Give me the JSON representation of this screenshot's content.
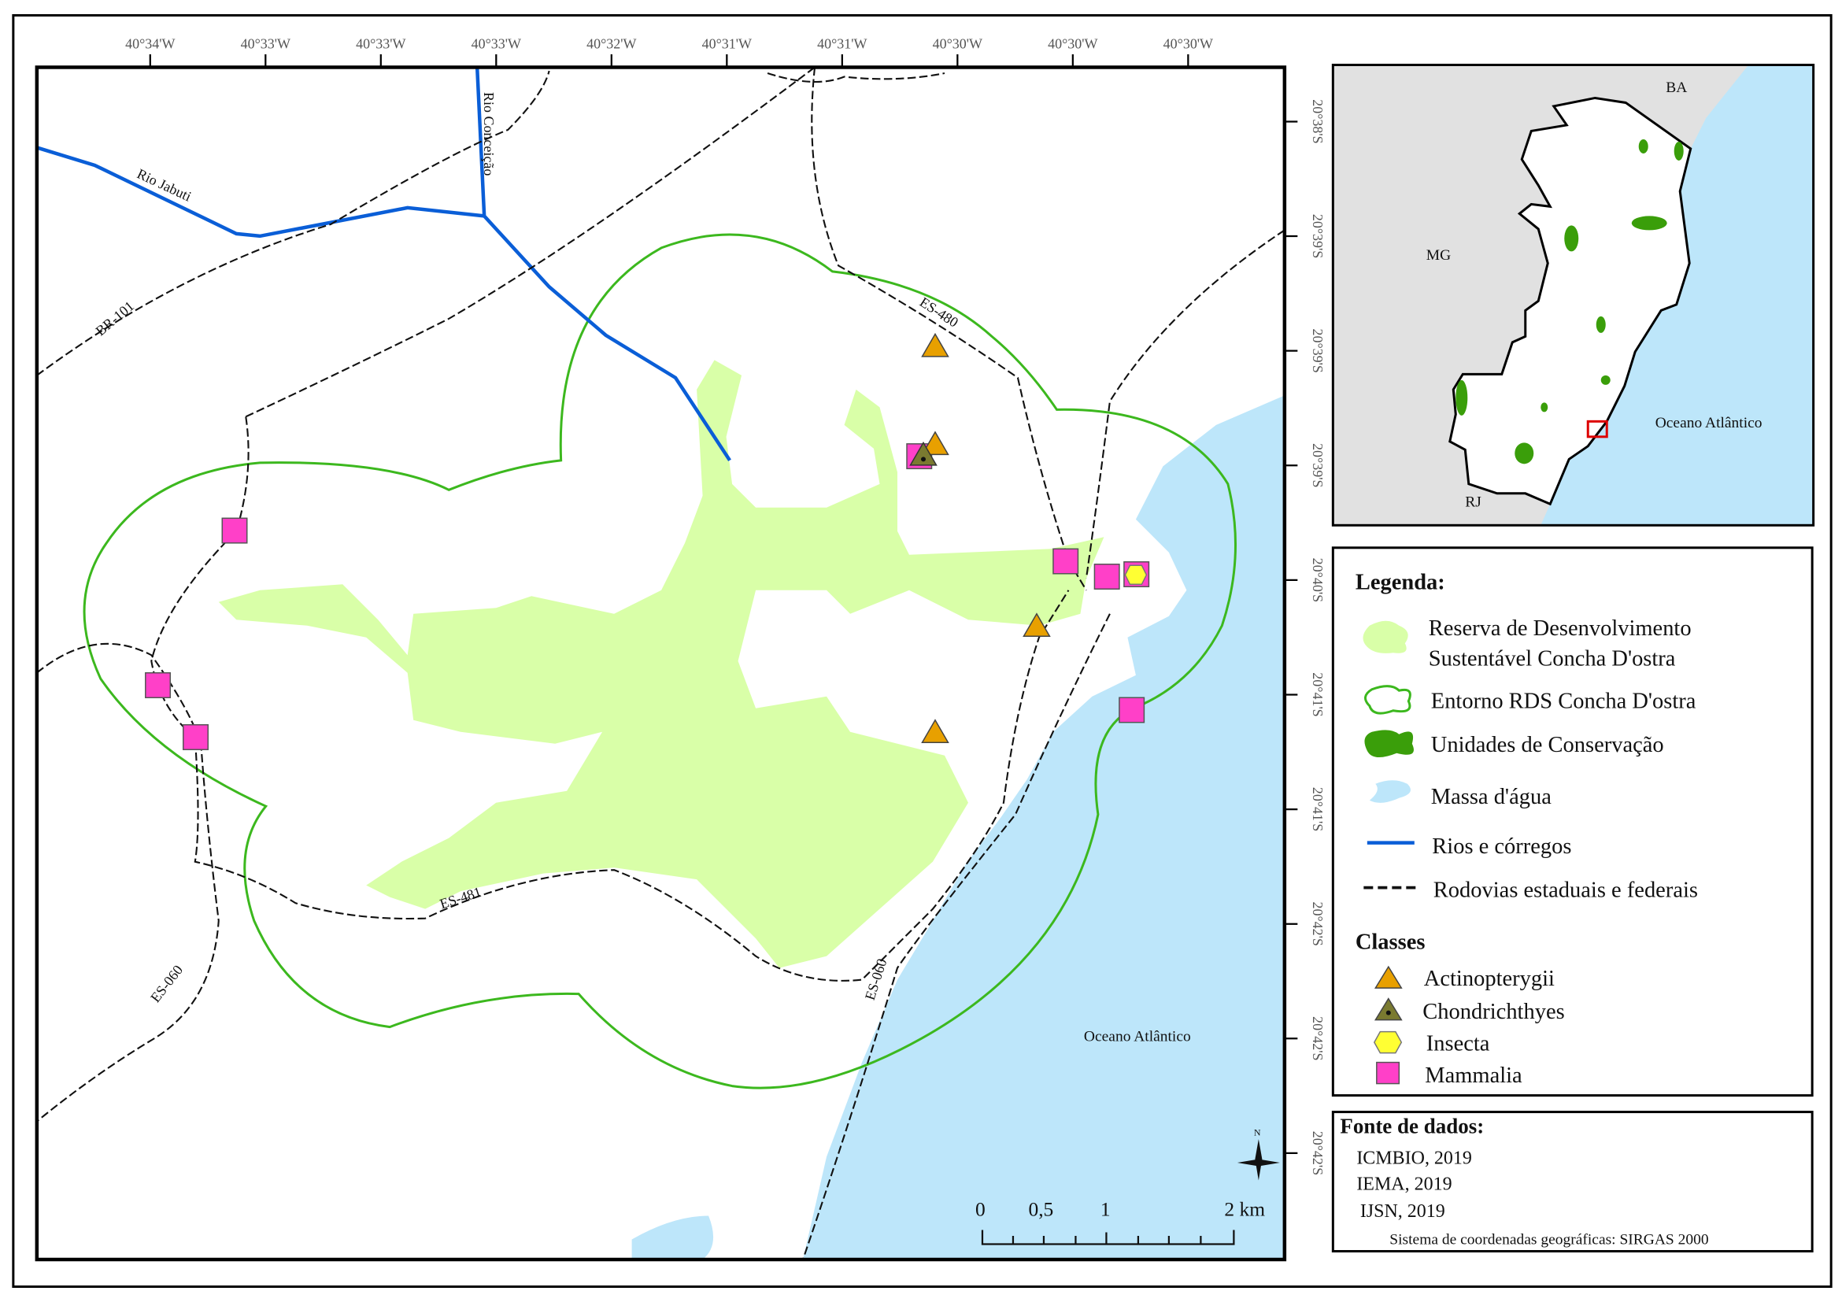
{
  "map": {
    "top_ticks": [
      "40°34'W",
      "40°33'W",
      "40°33'W",
      "40°33'W",
      "40°32'W",
      "40°31'W",
      "40°31'W",
      "40°30'W",
      "40°30'W",
      "40°30'W"
    ],
    "right_ticks": [
      "20°38'S",
      "20°39'S",
      "20°39'S",
      "20°39'S",
      "20°40'S",
      "20°41'S",
      "20°41'S",
      "20°42'S",
      "20°42'S",
      "20°42'S"
    ],
    "labels": {
      "rio_jabuti": "Rio Jabuti",
      "rio_conceicao": "Rio Conceição",
      "br101": "BR-101",
      "es480": "ES-480",
      "es481": "ES-481",
      "es060_a": "ES-060",
      "es060_b": "ES-060",
      "ocean": "Oceano Atlântico"
    },
    "scale": {
      "ticks": [
        "0",
        "0,5",
        "1",
        "2 km"
      ]
    },
    "north": "N"
  },
  "inset": {
    "labels": {
      "ba": "BA",
      "mg": "MG",
      "rj": "RJ",
      "ocean": "Oceano Atlântico"
    }
  },
  "legend": {
    "title": "Legenda:",
    "items": [
      {
        "label1": "Reserva de Desenvolvimento",
        "label2": "Sustentável Concha D'ostra"
      },
      {
        "label": "Entorno RDS Concha D'ostra"
      },
      {
        "label": "Unidades de Conservação"
      },
      {
        "label": "Massa d'água"
      },
      {
        "label": "Rios e córregos"
      },
      {
        "label": "Rodovias estaduais e federais"
      }
    ],
    "classes_title": "Classes",
    "classes": [
      {
        "label": "Actinopterygii",
        "color": "#e8a000"
      },
      {
        "label": "Chondrichthyes",
        "color": "#7a7a30"
      },
      {
        "label": "Insecta",
        "color": "#ffff33"
      },
      {
        "label": "Mammalia",
        "color": "#ff40c8"
      }
    ]
  },
  "sources": {
    "title": "Fonte de dados:",
    "items": [
      "ICMBIO, 2019",
      "IEMA, 2019",
      "IJSN, 2019"
    ],
    "crs": "Sistema de coordenadas geográficas: SIRGAS 2000"
  },
  "colors": {
    "rds_fill": "#d9ffa8",
    "entorno": "#3cb81e",
    "uc": "#3a9e0a",
    "water": "#bde6fa",
    "river": "#0a5ed7",
    "land_other": "#e1e1e1"
  }
}
